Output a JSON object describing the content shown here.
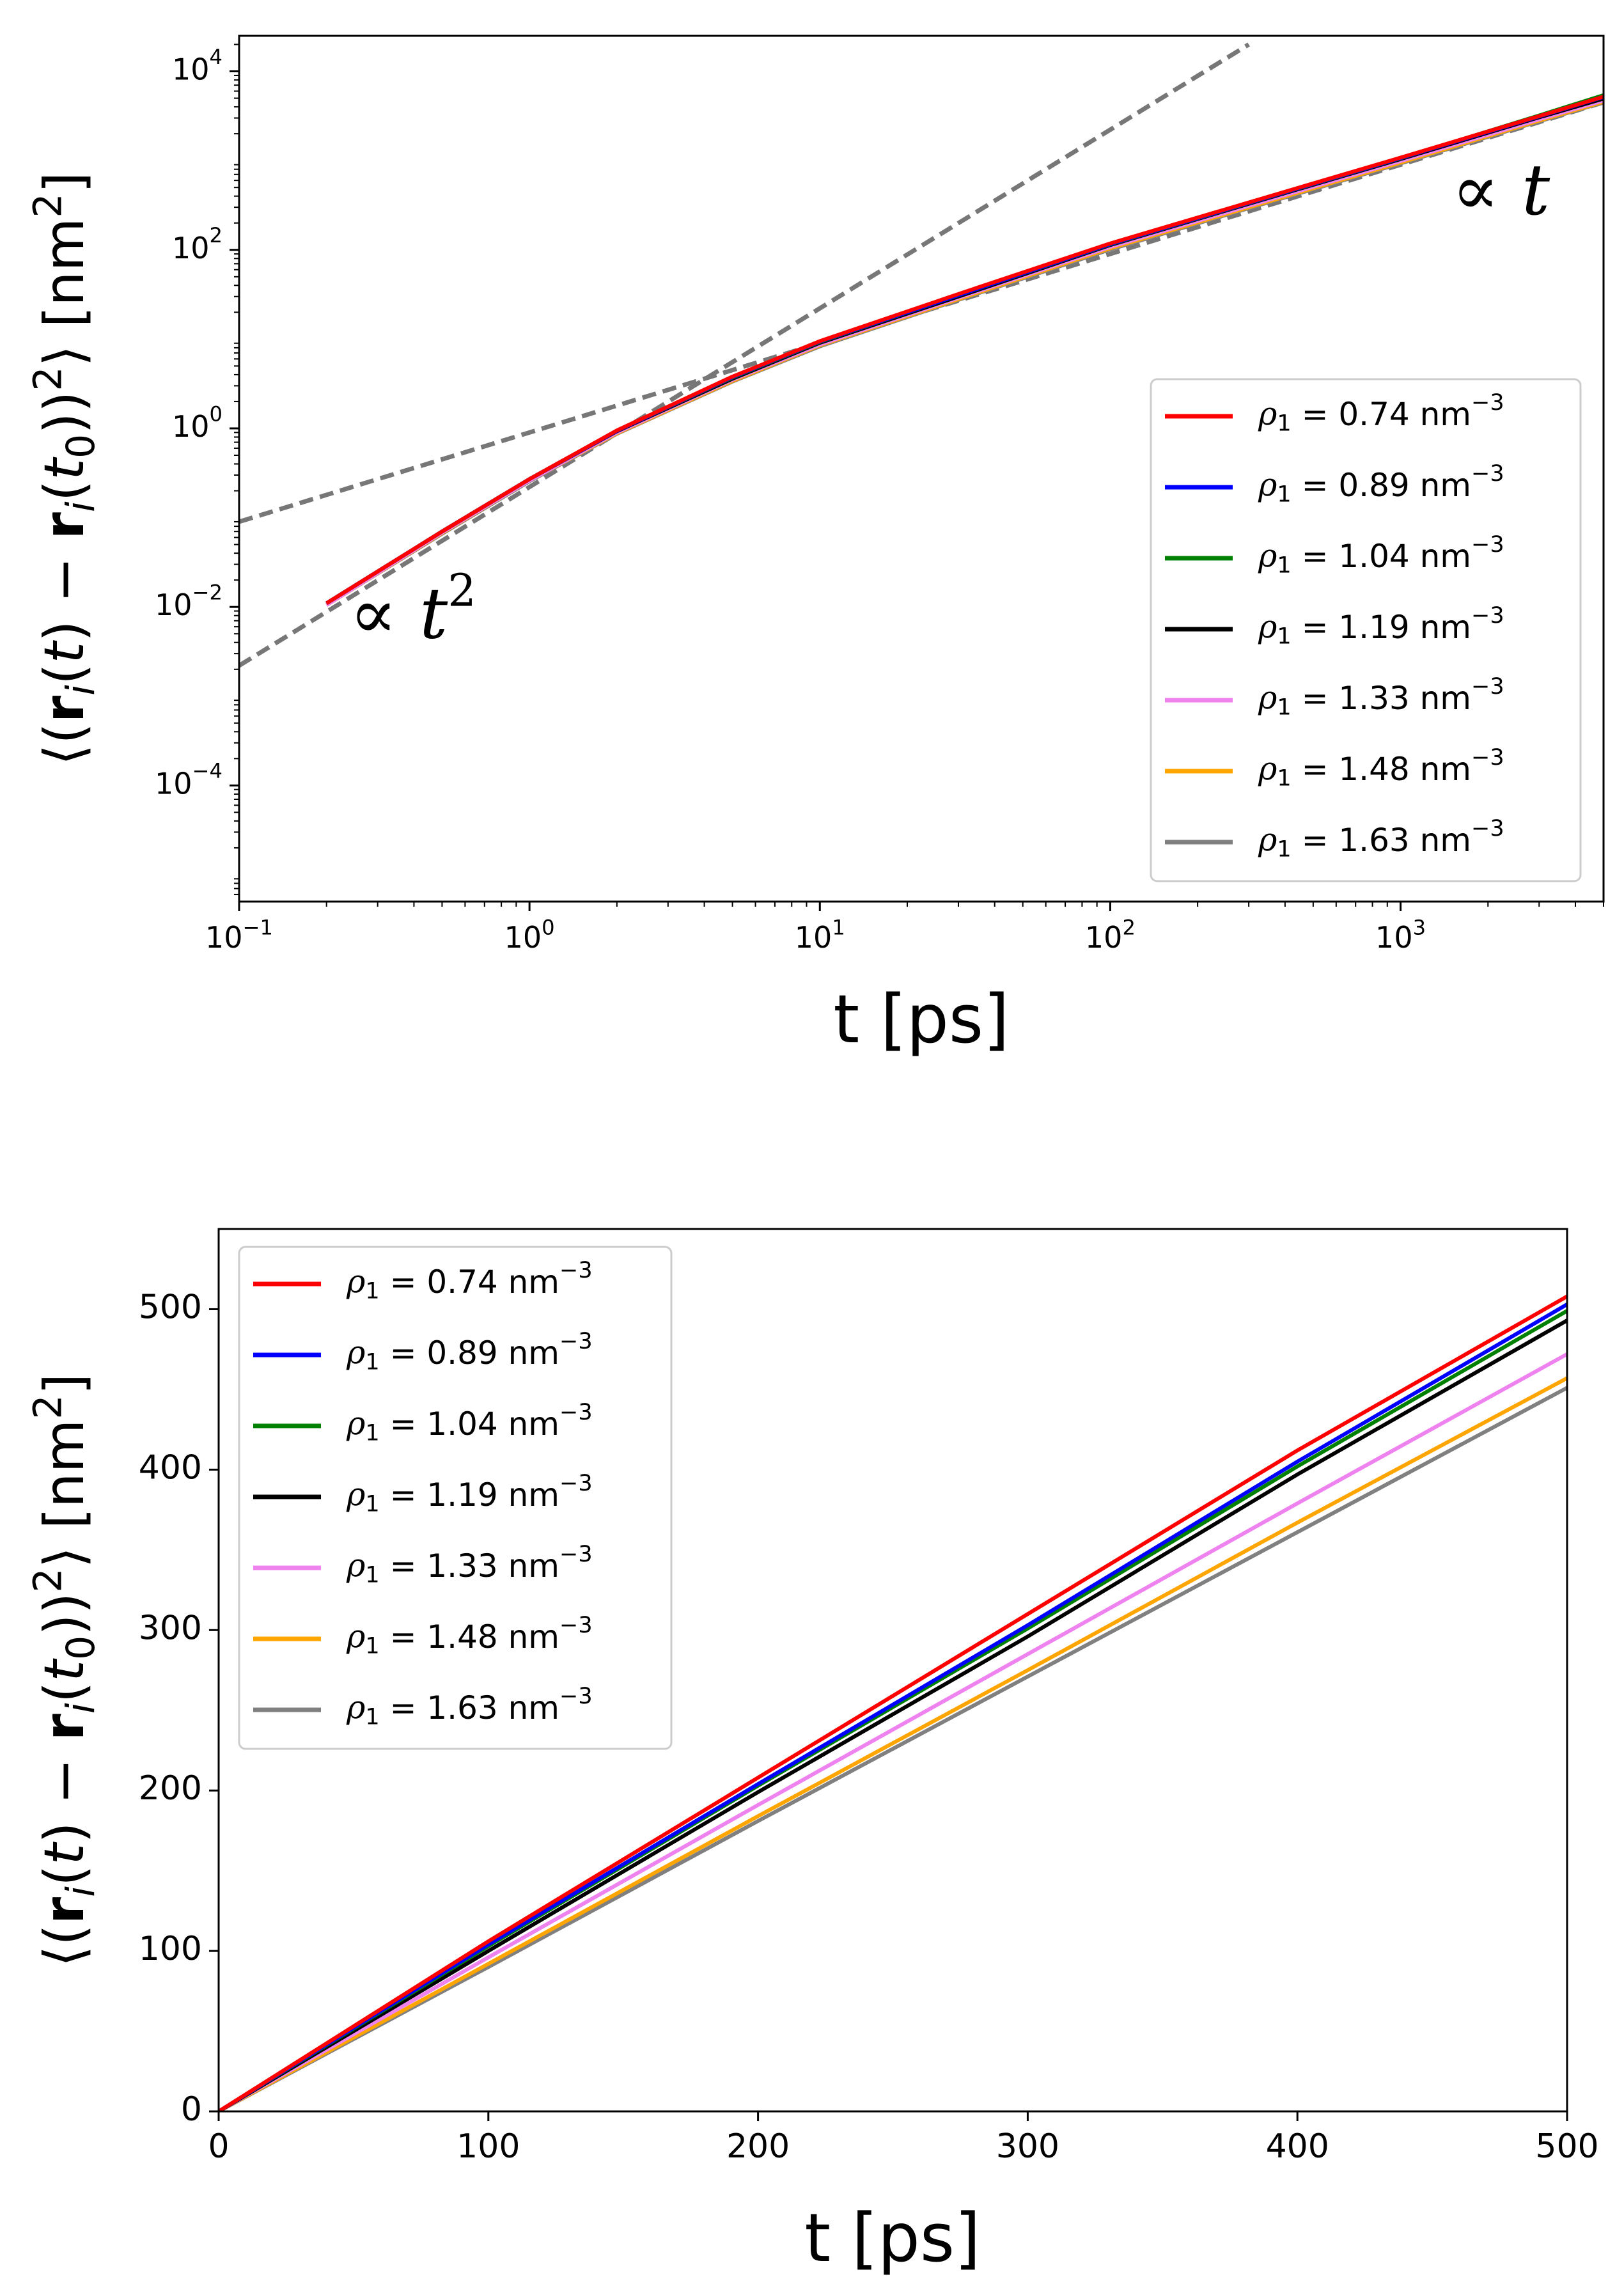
{
  "chart_data": [
    {
      "type": "line",
      "xscale": "log",
      "yscale": "log",
      "title": "",
      "xlabel": "t [ps]",
      "ylabel_parts": [
        "⟨(",
        "r",
        "i",
        "(",
        "t",
        ") − ",
        "r",
        "i",
        "(",
        "t",
        "0",
        "))",
        "2",
        "⟩ [nm",
        "2",
        "]"
      ],
      "xlim": [
        0.1,
        5000
      ],
      "ylim": [
        5e-06,
        25000
      ],
      "xtick_values": [
        0.1,
        1,
        10,
        100,
        1000
      ],
      "xtick_labels": [
        [
          "10",
          "−1"
        ],
        [
          "10",
          "0"
        ],
        [
          "10",
          "1"
        ],
        [
          "10",
          "2"
        ],
        [
          "10",
          "3"
        ]
      ],
      "ytick_values": [
        0.0001,
        0.01,
        1,
        100,
        10000
      ],
      "ytick_labels": [
        [
          "10",
          "−4"
        ],
        [
          "10",
          "−2"
        ],
        [
          "10",
          "0"
        ],
        [
          "10",
          "2"
        ],
        [
          "10",
          "4"
        ]
      ],
      "legend_position": "lower right",
      "annotations": [
        {
          "text_prefix": "∝ ",
          "var": "t",
          "sup": "",
          "at": [
            1500,
            250
          ]
        },
        {
          "text_prefix": "∝ ",
          "var": "t",
          "sup": "2",
          "at": [
            0.24,
            0.0045
          ]
        }
      ],
      "guides": [
        {
          "name": "ballistic-fit",
          "slope": 2,
          "points": [
            [
              0.1,
              0.0022
            ],
            [
              300,
              20000
            ]
          ]
        },
        {
          "name": "diffusive-fit",
          "slope": 1,
          "points": [
            [
              0.1,
              0.09
            ],
            [
              5000,
              4500
            ]
          ]
        }
      ],
      "series": [
        {
          "name": "ρ1 = 0.74 nm−3",
          "label": "0.74",
          "color": "#ff0000",
          "x": [
            0.2,
            0.5,
            1,
            2,
            5,
            10,
            30,
            100,
            300,
            1000,
            3000,
            5000
          ],
          "y": [
            0.011,
            0.07,
            0.27,
            0.95,
            3.8,
            9.5,
            32,
            118,
            340,
            1080,
            3150,
            5200
          ]
        },
        {
          "name": "ρ1 = 0.89 nm−3",
          "label": "0.89",
          "color": "#0000ff",
          "x": [
            0.2,
            0.5,
            1,
            2,
            5,
            10,
            30,
            100,
            300,
            1000,
            3000,
            5000
          ],
          "y": [
            0.011,
            0.07,
            0.27,
            0.94,
            3.75,
            9.4,
            31,
            116,
            335,
            1065,
            3120,
            5150
          ]
        },
        {
          "name": "ρ1 = 1.04 nm−3",
          "label": "1.04",
          "color": "#008000",
          "x": [
            0.2,
            0.5,
            1,
            2,
            5,
            10,
            30,
            100,
            300,
            1000,
            3000,
            5000
          ],
          "y": [
            0.011,
            0.07,
            0.27,
            0.94,
            3.7,
            9.3,
            31,
            115,
            333,
            1060,
            3200,
            5400
          ]
        },
        {
          "name": "ρ1 = 1.19 nm−3",
          "label": "1.19",
          "color": "#000000",
          "x": [
            0.2,
            0.5,
            1,
            2,
            5,
            10,
            30,
            100,
            300,
            1000,
            3000,
            5000
          ],
          "y": [
            0.011,
            0.07,
            0.27,
            0.93,
            3.6,
            9.1,
            30,
            113,
            328,
            1040,
            3050,
            4950
          ]
        },
        {
          "name": "ρ1 = 1.33 nm−3",
          "label": "1.33",
          "color": "#ee82ee",
          "x": [
            0.2,
            0.5,
            1,
            2,
            5,
            10,
            30,
            100,
            300,
            1000,
            3000,
            5000
          ],
          "y": [
            0.0105,
            0.068,
            0.26,
            0.9,
            3.5,
            8.7,
            29,
            108,
            312,
            990,
            2900,
            4700
          ]
        },
        {
          "name": "ρ1 = 1.48 nm−3",
          "label": "1.48",
          "color": "#ffa500",
          "x": [
            0.2,
            0.5,
            1,
            2,
            5,
            10,
            30,
            100,
            300,
            1000,
            3000,
            5000
          ],
          "y": [
            0.0105,
            0.067,
            0.26,
            0.88,
            3.4,
            8.5,
            28,
            104,
            300,
            950,
            2800,
            4560
          ]
        },
        {
          "name": "ρ1 = 1.63 nm−3",
          "label": "1.63",
          "color": "#808080",
          "x": [
            0.2,
            0.5,
            1,
            2,
            5,
            10,
            30,
            100,
            300,
            1000,
            3000,
            5000
          ],
          "y": [
            0.0105,
            0.066,
            0.255,
            0.87,
            3.35,
            8.3,
            27.5,
            101,
            293,
            930,
            2750,
            4500
          ]
        }
      ]
    },
    {
      "type": "line",
      "xscale": "linear",
      "yscale": "linear",
      "title": "",
      "xlabel": "t [ps]",
      "ylabel_parts": [
        "⟨(",
        "r",
        "i",
        "(",
        "t",
        ") − ",
        "r",
        "i",
        "(",
        "t",
        "0",
        "))",
        "2",
        "⟩ [nm",
        "2",
        "]"
      ],
      "xlim": [
        0,
        500
      ],
      "ylim": [
        0,
        550
      ],
      "xtick_values": [
        0,
        100,
        200,
        300,
        400,
        500
      ],
      "xtick_labels": [
        "0",
        "100",
        "200",
        "300",
        "400",
        "500"
      ],
      "ytick_values": [
        0,
        100,
        200,
        300,
        400,
        500
      ],
      "ytick_labels": [
        "0",
        "100",
        "200",
        "300",
        "400",
        "500"
      ],
      "legend_position": "upper left",
      "series": [
        {
          "name": "ρ1 = 0.74 nm−3",
          "label": "0.74",
          "color": "#ff0000",
          "x": [
            0,
            100,
            200,
            300,
            400,
            500
          ],
          "y": [
            0,
            106,
            208,
            310,
            412,
            508
          ]
        },
        {
          "name": "ρ1 = 0.89 nm−3",
          "label": "0.89",
          "color": "#0000ff",
          "x": [
            0,
            100,
            200,
            300,
            400,
            500
          ],
          "y": [
            0,
            104,
            204,
            303,
            405,
            503
          ]
        },
        {
          "name": "ρ1 = 1.04 nm−3",
          "label": "1.04",
          "color": "#008000",
          "x": [
            0,
            100,
            200,
            300,
            400,
            500
          ],
          "y": [
            0,
            103,
            203,
            301,
            402,
            499
          ]
        },
        {
          "name": "ρ1 = 1.19 nm−3",
          "label": "1.19",
          "color": "#000000",
          "x": [
            0,
            100,
            200,
            300,
            400,
            500
          ],
          "y": [
            0,
            100,
            199,
            296,
            397,
            493
          ]
        },
        {
          "name": "ρ1 = 1.33 nm−3",
          "label": "1.33",
          "color": "#ee82ee",
          "x": [
            0,
            100,
            200,
            300,
            400,
            500
          ],
          "y": [
            0,
            96,
            191,
            285,
            379,
            472
          ]
        },
        {
          "name": "ρ1 = 1.48 nm−3",
          "label": "1.48",
          "color": "#ffa500",
          "x": [
            0,
            100,
            200,
            300,
            400,
            500
          ],
          "y": [
            0,
            92,
            184,
            275,
            367,
            457
          ]
        },
        {
          "name": "ρ1 = 1.63 nm−3",
          "label": "1.63",
          "color": "#808080",
          "x": [
            0,
            100,
            200,
            300,
            400,
            500
          ],
          "y": [
            0,
            90,
            181,
            271,
            361,
            451
          ]
        }
      ]
    }
  ],
  "legend_text": {
    "symbol": "ρ",
    "sub": "1",
    "equals": " = ",
    "unit": " nm",
    "unit_exp": "−3"
  },
  "guide_color": "#777777"
}
